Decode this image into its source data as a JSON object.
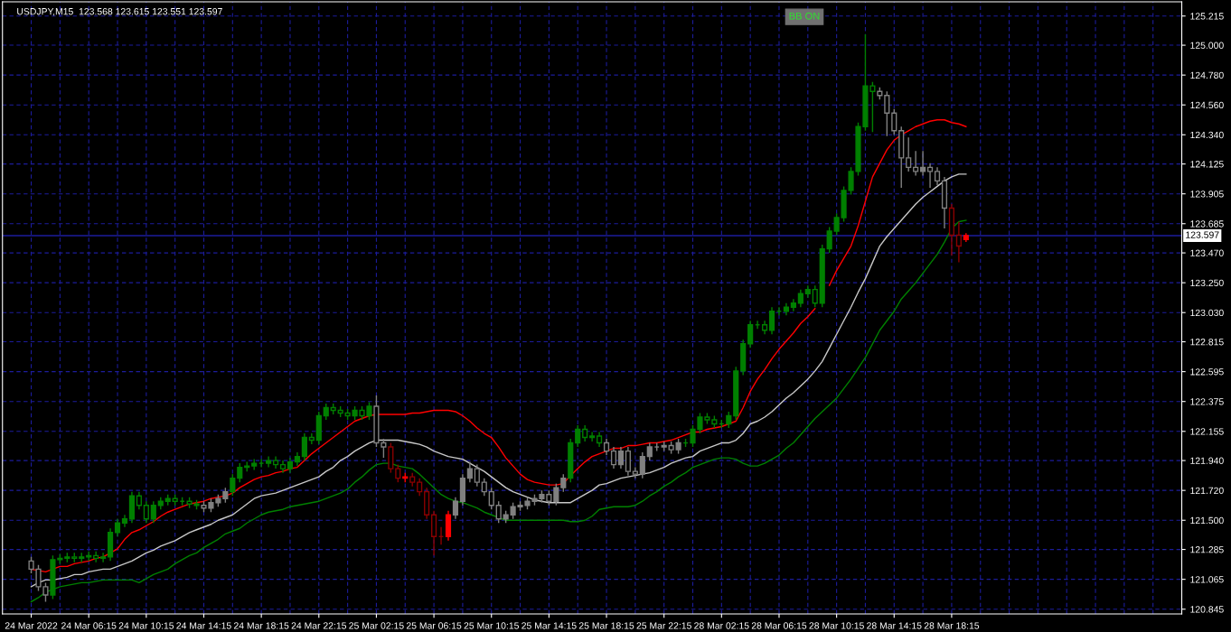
{
  "chart_data": {
    "type": "candlestick",
    "title": "USDJPY,M15  123.568 123.615 123.551 123.597",
    "annotations": [
      "BB ON"
    ],
    "categories": [
      "24 Mar 2022",
      null,
      null,
      null,
      null,
      null,
      null,
      null,
      "24 Mar 06:15",
      null,
      null,
      null,
      null,
      null,
      null,
      null,
      "24 Mar 10:15",
      null,
      null,
      null,
      null,
      null,
      null,
      null,
      "24 Mar 14:15",
      null,
      null,
      null,
      null,
      null,
      null,
      null,
      "24 Mar 18:15",
      null,
      null,
      null,
      null,
      null,
      null,
      null,
      "24 Mar 22:15",
      null,
      null,
      null,
      null,
      null,
      null,
      null,
      "25 Mar 02:15",
      null,
      null,
      null,
      null,
      null,
      null,
      null,
      "25 Mar 06:15",
      null,
      null,
      null,
      null,
      null,
      null,
      null,
      "25 Mar 10:15",
      null,
      null,
      null,
      null,
      null,
      null,
      null,
      "25 Mar 14:15",
      null,
      null,
      null,
      null,
      null,
      null,
      null,
      "25 Mar 18:15",
      null,
      null,
      null,
      null,
      null,
      null,
      null,
      "25 Mar 22:15",
      null,
      null,
      null,
      null,
      null,
      null,
      null,
      "28 Mar 02:15",
      null,
      null,
      null,
      null,
      null,
      null,
      null,
      "28 Mar 06:15",
      null,
      null,
      null,
      null,
      null,
      null,
      null,
      "28 Mar 10:15",
      null,
      null,
      null,
      null,
      null,
      null,
      null,
      "28 Mar 14:15",
      null,
      null,
      null,
      null,
      null,
      null,
      null,
      "28 Mar 18:15",
      null,
      null
    ],
    "ohlc": [
      [
        121.2,
        121.23,
        121.11,
        121.14
      ],
      [
        121.14,
        121.17,
        120.98,
        121.01
      ],
      [
        121.01,
        121.04,
        120.9,
        120.95
      ],
      [
        120.95,
        121.24,
        120.92,
        121.21
      ],
      [
        121.21,
        121.25,
        121.18,
        121.22
      ],
      [
        121.22,
        121.26,
        121.19,
        121.23
      ],
      [
        121.23,
        121.26,
        121.19,
        121.22
      ],
      [
        121.22,
        121.26,
        121.19,
        121.23
      ],
      [
        121.23,
        121.27,
        121.2,
        121.24
      ],
      [
        121.24,
        121.27,
        121.19,
        121.22
      ],
      [
        121.22,
        121.26,
        121.19,
        121.23
      ],
      [
        121.23,
        121.44,
        121.2,
        121.41
      ],
      [
        121.41,
        121.51,
        121.38,
        121.48
      ],
      [
        121.48,
        121.54,
        121.45,
        121.51
      ],
      [
        121.51,
        121.71,
        121.48,
        121.68
      ],
      [
        121.68,
        121.71,
        121.58,
        121.61
      ],
      [
        121.61,
        121.64,
        121.48,
        121.51
      ],
      [
        121.51,
        121.64,
        121.48,
        121.61
      ],
      [
        121.61,
        121.67,
        121.58,
        121.64
      ],
      [
        121.64,
        121.69,
        121.61,
        121.66
      ],
      [
        121.66,
        121.69,
        121.61,
        121.64
      ],
      [
        121.64,
        121.67,
        121.61,
        121.64
      ],
      [
        121.64,
        121.67,
        121.59,
        121.62
      ],
      [
        121.62,
        121.65,
        121.58,
        121.61
      ],
      [
        121.61,
        121.64,
        121.56,
        121.59
      ],
      [
        121.59,
        121.66,
        121.56,
        121.63
      ],
      [
        121.63,
        121.69,
        121.6,
        121.66
      ],
      [
        121.66,
        121.74,
        121.63,
        121.71
      ],
      [
        121.71,
        121.84,
        121.68,
        121.81
      ],
      [
        121.81,
        121.92,
        121.78,
        121.89
      ],
      [
        121.89,
        121.93,
        121.86,
        121.9
      ],
      [
        121.9,
        121.95,
        121.87,
        121.92
      ],
      [
        121.92,
        121.95,
        121.89,
        121.92
      ],
      [
        121.92,
        121.97,
        121.89,
        121.94
      ],
      [
        121.94,
        121.97,
        121.88,
        121.91
      ],
      [
        121.91,
        121.94,
        121.85,
        121.88
      ],
      [
        121.88,
        121.96,
        121.85,
        121.93
      ],
      [
        121.93,
        122.0,
        121.9,
        121.97
      ],
      [
        121.97,
        122.14,
        121.94,
        122.11
      ],
      [
        122.11,
        122.14,
        122.06,
        122.09
      ],
      [
        122.09,
        122.3,
        122.06,
        122.27
      ],
      [
        122.27,
        122.36,
        122.24,
        122.33
      ],
      [
        122.33,
        122.36,
        122.28,
        122.31
      ],
      [
        122.31,
        122.34,
        122.26,
        122.29
      ],
      [
        122.29,
        122.32,
        122.24,
        122.27
      ],
      [
        122.27,
        122.34,
        122.24,
        122.31
      ],
      [
        122.31,
        122.34,
        122.24,
        122.27
      ],
      [
        122.27,
        122.37,
        122.24,
        122.34
      ],
      [
        122.34,
        122.42,
        122.04,
        122.07
      ],
      [
        122.07,
        122.1,
        121.96,
        122.04
      ],
      [
        122.04,
        122.07,
        121.85,
        121.88
      ],
      [
        121.88,
        121.91,
        121.78,
        121.81
      ],
      [
        121.81,
        121.85,
        121.78,
        121.82
      ],
      [
        121.82,
        121.85,
        121.75,
        121.78
      ],
      [
        121.78,
        121.81,
        121.68,
        121.71
      ],
      [
        121.71,
        121.74,
        121.51,
        121.54
      ],
      [
        121.54,
        121.57,
        121.24,
        121.38
      ],
      [
        121.38,
        121.45,
        121.32,
        121.38
      ],
      [
        121.38,
        121.57,
        121.35,
        121.54
      ],
      [
        121.54,
        121.67,
        121.51,
        121.64
      ],
      [
        121.64,
        121.84,
        121.61,
        121.81
      ],
      [
        121.81,
        121.93,
        121.78,
        121.88
      ],
      [
        121.88,
        121.91,
        121.75,
        121.78
      ],
      [
        121.78,
        121.81,
        121.68,
        121.71
      ],
      [
        121.71,
        121.74,
        121.58,
        121.61
      ],
      [
        121.61,
        121.64,
        121.48,
        121.51
      ],
      [
        121.51,
        121.57,
        121.48,
        121.54
      ],
      [
        121.54,
        121.63,
        121.51,
        121.6
      ],
      [
        121.6,
        121.64,
        121.57,
        121.61
      ],
      [
        121.61,
        121.67,
        121.58,
        121.64
      ],
      [
        121.64,
        121.69,
        121.61,
        121.66
      ],
      [
        121.66,
        121.72,
        121.63,
        121.69
      ],
      [
        121.69,
        121.72,
        121.61,
        121.64
      ],
      [
        121.64,
        121.77,
        121.61,
        121.74
      ],
      [
        121.74,
        121.84,
        121.71,
        121.81
      ],
      [
        121.81,
        122.1,
        121.78,
        122.07
      ],
      [
        122.07,
        122.2,
        122.04,
        122.17
      ],
      [
        122.17,
        122.2,
        122.08,
        122.11
      ],
      [
        122.11,
        122.15,
        122.08,
        122.12
      ],
      [
        122.12,
        122.15,
        122.04,
        122.07
      ],
      [
        122.07,
        122.1,
        121.98,
        122.01
      ],
      [
        122.01,
        122.04,
        121.88,
        121.91
      ],
      [
        121.91,
        122.04,
        121.88,
        122.01
      ],
      [
        122.01,
        122.04,
        121.83,
        121.86
      ],
      [
        121.86,
        121.89,
        121.81,
        121.84
      ],
      [
        121.84,
        122.0,
        121.81,
        121.97
      ],
      [
        121.97,
        122.07,
        121.94,
        122.04
      ],
      [
        122.04,
        122.07,
        122.01,
        122.04
      ],
      [
        122.04,
        122.08,
        122.01,
        122.05
      ],
      [
        122.05,
        122.08,
        121.99,
        122.02
      ],
      [
        122.02,
        122.1,
        121.99,
        122.07
      ],
      [
        122.07,
        122.1,
        122.04,
        122.07
      ],
      [
        122.07,
        122.2,
        122.04,
        122.17
      ],
      [
        122.17,
        122.29,
        122.14,
        122.26
      ],
      [
        122.26,
        122.29,
        122.21,
        122.24
      ],
      [
        122.24,
        122.27,
        122.18,
        122.21
      ],
      [
        122.21,
        122.24,
        122.18,
        122.21
      ],
      [
        122.21,
        122.3,
        122.18,
        122.27
      ],
      [
        122.27,
        122.63,
        122.24,
        122.6
      ],
      [
        122.6,
        122.83,
        122.57,
        122.8
      ],
      [
        122.8,
        122.97,
        122.77,
        122.94
      ],
      [
        122.94,
        122.97,
        122.91,
        122.94
      ],
      [
        122.94,
        122.97,
        122.87,
        122.9
      ],
      [
        122.9,
        123.07,
        122.87,
        123.04
      ],
      [
        123.04,
        123.07,
        123.01,
        123.04
      ],
      [
        123.04,
        123.1,
        123.01,
        123.07
      ],
      [
        123.07,
        123.13,
        123.04,
        123.1
      ],
      [
        123.1,
        123.2,
        123.07,
        123.17
      ],
      [
        123.17,
        123.23,
        123.14,
        123.2
      ],
      [
        123.2,
        123.23,
        123.07,
        123.1
      ],
      [
        123.1,
        123.53,
        123.07,
        123.5
      ],
      [
        123.5,
        123.66,
        123.47,
        123.63
      ],
      [
        123.63,
        123.76,
        123.6,
        123.73
      ],
      [
        123.73,
        123.96,
        123.7,
        123.93
      ],
      [
        123.93,
        124.1,
        123.9,
        124.07
      ],
      [
        124.07,
        124.43,
        124.04,
        124.4
      ],
      [
        124.4,
        125.08,
        124.37,
        124.7
      ],
      [
        124.7,
        124.73,
        124.36,
        124.66
      ],
      [
        124.66,
        124.69,
        124.6,
        124.63
      ],
      [
        124.63,
        124.66,
        124.33,
        124.5
      ],
      [
        124.5,
        124.53,
        124.34,
        124.37
      ],
      [
        124.37,
        124.4,
        123.95,
        124.17
      ],
      [
        124.17,
        124.32,
        124.07,
        124.1
      ],
      [
        124.1,
        124.22,
        124.04,
        124.07
      ],
      [
        124.07,
        124.22,
        124.04,
        124.1
      ],
      [
        124.1,
        124.13,
        123.95,
        124.07
      ],
      [
        124.07,
        124.1,
        123.97,
        124.0
      ],
      [
        124.0,
        124.03,
        123.65,
        123.8
      ],
      [
        123.8,
        123.83,
        123.45,
        123.6
      ],
      [
        123.6,
        123.7,
        123.4,
        123.52
      ],
      [
        123.568,
        123.615,
        123.551,
        123.597
      ]
    ],
    "colors": [
      "#808080",
      "#808080",
      "#808080",
      "#008000",
      "#008000",
      "#008000",
      "#008000",
      "#008000",
      "#008000",
      "#008000",
      "#008000",
      "#008000",
      "#008000",
      "#008000",
      "#008000",
      "#008000",
      "#008000",
      "#008000",
      "#008000",
      "#008000",
      "#008000",
      "#008000",
      "#008000",
      "#008000",
      "#808080",
      "#808080",
      "#808080",
      "#808080",
      "#008000",
      "#008000",
      "#008000",
      "#008000",
      "#008000",
      "#008000",
      "#008000",
      "#008000",
      "#008000",
      "#008000",
      "#008000",
      "#008000",
      "#008000",
      "#008000",
      "#008000",
      "#008000",
      "#008000",
      "#008000",
      "#008000",
      "#008000",
      "#808080",
      "#808080",
      "#8b0000",
      "#8b0000",
      "#ff0000",
      "#8b0000",
      "#8b0000",
      "#8b0000",
      "#8b0000",
      "#8b0000",
      "#ff0000",
      "#808080",
      "#808080",
      "#808080",
      "#808080",
      "#808080",
      "#808080",
      "#808080",
      "#808080",
      "#808080",
      "#808080",
      "#808080",
      "#808080",
      "#808080",
      "#808080",
      "#808080",
      "#808080",
      "#008000",
      "#008000",
      "#008000",
      "#008000",
      "#008000",
      "#808080",
      "#808080",
      "#808080",
      "#808080",
      "#808080",
      "#808080",
      "#808080",
      "#808080",
      "#808080",
      "#808080",
      "#808080",
      "#008000",
      "#008000",
      "#008000",
      "#008000",
      "#008000",
      "#008000",
      "#008000",
      "#008000",
      "#008000",
      "#008000",
      "#008000",
      "#008000",
      "#008000",
      "#008000",
      "#008000",
      "#008000",
      "#008000",
      "#008000",
      "#008000",
      "#008000",
      "#008000",
      "#008000",
      "#008000",
      "#008000",
      "#008000",
      "#008000",
      "#008000",
      "#808080",
      "#808080",
      "#808080",
      "#808080",
      "#808080",
      "#808080",
      "#808080",
      "#808080",
      "#808080",
      "#808080",
      "#8b0000",
      "#8b0000",
      "#ff0000"
    ],
    "series": [
      {
        "type": "line",
        "color": "#ff0000",
        "values": [
          121.14,
          121.13,
          121.12,
          121.14,
          121.16,
          121.16,
          121.18,
          121.19,
          121.2,
          121.22,
          121.23,
          121.26,
          121.29,
          121.36,
          121.41,
          121.43,
          121.46,
          121.49,
          121.53,
          121.56,
          121.58,
          121.6,
          121.62,
          121.63,
          121.64,
          121.66,
          121.67,
          121.68,
          121.7,
          121.74,
          121.77,
          121.8,
          121.82,
          121.83,
          121.85,
          121.86,
          121.88,
          121.89,
          121.94,
          121.99,
          122.03,
          122.07,
          122.11,
          122.15,
          122.19,
          122.23,
          122.25,
          122.27,
          122.28,
          122.28,
          122.28,
          122.28,
          122.28,
          122.29,
          122.29,
          122.3,
          122.31,
          122.31,
          122.31,
          122.3,
          122.27,
          122.23,
          122.18,
          122.14,
          122.11,
          122.04,
          121.96,
          121.9,
          121.84,
          121.8,
          121.78,
          121.77,
          121.76,
          121.76,
          121.77,
          121.83,
          121.88,
          121.93,
          121.97,
          121.99,
          122.01,
          122.03,
          122.03,
          122.05,
          122.05,
          122.06,
          122.07,
          122.07,
          122.08,
          122.09,
          122.11,
          122.13,
          122.15,
          122.15,
          122.17,
          122.18,
          122.19,
          122.21,
          122.23,
          122.33,
          122.45,
          122.54,
          122.61,
          122.69,
          122.76,
          122.82,
          122.88,
          122.95,
          123.0,
          123.06,
          null,
          123.23,
          123.34,
          123.43,
          123.52,
          123.67,
          123.85,
          124.03,
          124.13,
          124.23,
          124.3,
          124.34,
          124.37,
          124.4,
          124.42,
          124.44,
          124.45,
          124.45,
          124.43,
          124.42,
          124.4
        ]
      },
      {
        "type": "line",
        "color": "#c8c8c8",
        "values": [
          121.01,
          121.04,
          121.06,
          121.06,
          121.07,
          121.08,
          121.1,
          121.1,
          121.12,
          121.13,
          121.14,
          121.14,
          121.16,
          121.18,
          121.2,
          121.23,
          121.26,
          121.28,
          121.31,
          121.33,
          121.35,
          121.38,
          121.41,
          121.43,
          121.45,
          121.47,
          121.5,
          121.52,
          121.54,
          121.58,
          121.62,
          121.66,
          121.68,
          121.69,
          121.7,
          121.72,
          121.74,
          121.76,
          121.78,
          121.8,
          121.82,
          121.86,
          121.89,
          121.94,
          121.97,
          122.01,
          122.04,
          122.07,
          122.09,
          122.09,
          122.09,
          122.09,
          122.08,
          122.07,
          122.06,
          122.04,
          122.01,
          121.99,
          121.97,
          121.96,
          121.95,
          121.92,
          121.89,
          121.86,
          121.82,
          121.78,
          121.74,
          121.71,
          121.69,
          121.67,
          121.65,
          121.64,
          121.63,
          121.63,
          121.63,
          121.63,
          121.66,
          121.69,
          121.72,
          121.76,
          121.77,
          121.79,
          121.81,
          121.82,
          121.83,
          121.84,
          121.85,
          121.87,
          121.89,
          121.92,
          121.94,
          121.96,
          121.97,
          122.01,
          122.03,
          122.05,
          122.07,
          122.07,
          122.09,
          122.14,
          122.21,
          122.23,
          122.26,
          122.3,
          122.35,
          122.4,
          122.44,
          122.49,
          122.54,
          122.6,
          122.67,
          122.77,
          122.87,
          122.97,
          123.07,
          123.18,
          123.28,
          123.4,
          123.52,
          123.59,
          123.65,
          123.71,
          123.77,
          123.83,
          123.88,
          123.92,
          123.96,
          124.0,
          124.03,
          124.05,
          124.05
        ]
      },
      {
        "type": "line",
        "color": "#008000",
        "values": [
          120.9,
          120.93,
          120.97,
          120.99,
          121.01,
          121.02,
          121.03,
          121.04,
          121.04,
          121.05,
          121.06,
          121.06,
          121.06,
          121.06,
          121.06,
          121.04,
          121.07,
          121.1,
          121.12,
          121.14,
          121.18,
          121.21,
          121.24,
          121.26,
          121.3,
          121.33,
          121.36,
          121.4,
          121.42,
          121.44,
          121.48,
          121.51,
          121.54,
          121.56,
          121.57,
          121.58,
          121.6,
          121.61,
          121.62,
          121.63,
          121.64,
          121.66,
          121.68,
          121.7,
          121.73,
          121.78,
          121.82,
          121.87,
          121.91,
          121.92,
          121.92,
          121.9,
          121.89,
          121.88,
          121.84,
          121.79,
          121.74,
          121.69,
          121.66,
          121.64,
          121.63,
          121.61,
          121.59,
          121.56,
          121.54,
          121.52,
          121.5,
          121.5,
          121.5,
          121.5,
          121.5,
          121.5,
          121.5,
          121.5,
          121.5,
          121.49,
          121.49,
          121.5,
          121.53,
          121.58,
          121.59,
          121.6,
          121.6,
          121.6,
          121.61,
          121.64,
          121.68,
          121.71,
          121.75,
          121.78,
          121.82,
          121.85,
          121.89,
          121.91,
          121.93,
          121.95,
          121.96,
          121.96,
          121.95,
          121.92,
          121.9,
          121.9,
          121.92,
          121.95,
          121.98,
          122.03,
          122.07,
          122.13,
          122.19,
          122.25,
          122.3,
          122.35,
          122.4,
          122.47,
          122.54,
          122.62,
          122.7,
          122.8,
          122.9,
          122.97,
          123.04,
          123.13,
          123.19,
          123.25,
          123.32,
          123.39,
          123.46,
          123.55,
          123.65,
          123.7,
          123.71
        ]
      }
    ],
    "ylim": [
      120.81,
      125.32
    ],
    "yticks": [
      120.845,
      121.065,
      121.285,
      {
        "value": 121.5,
        "label": "121.500"
      },
      {
        "value": 121.72,
        "label": "121.720"
      },
      {
        "value": 121.94,
        "label": "121.940"
      },
      122.155,
      122.375,
      122.595,
      122.815,
      {
        "value": 123.03,
        "label": "123.030"
      },
      {
        "value": 123.25,
        "label": "123.250"
      },
      {
        "value": 123.47,
        "label": "123.470"
      },
      123.685,
      123.905,
      124.125,
      {
        "value": 124.34,
        "label": "124.340"
      },
      {
        "value": 124.56,
        "label": "124.560"
      },
      {
        "value": 124.78,
        "label": "124.780"
      },
      {
        "value": 125.0,
        "label": "125.000"
      },
      125.215
    ],
    "ref_lines": [
      {
        "axis": "y",
        "value": 123.597,
        "label": "123.597",
        "color": "#1c1c9c",
        "line_style": "solid"
      }
    ],
    "grid": true
  }
}
